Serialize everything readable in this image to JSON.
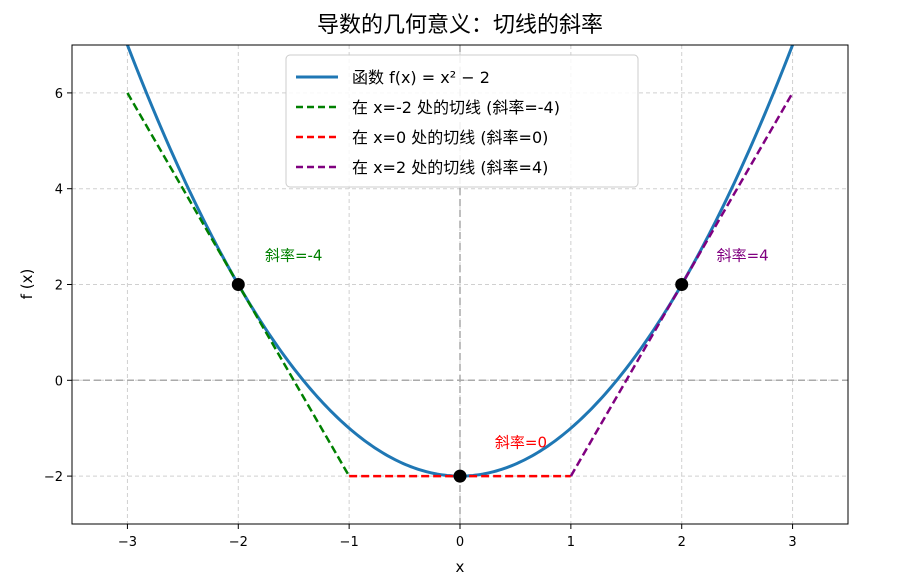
{
  "chart_data": {
    "type": "line",
    "title": "导数的几何意义：切线的斜率",
    "xlabel": "x",
    "ylabel": "f (x)",
    "xlim": [
      -3.5,
      3.5
    ],
    "ylim": [
      -3,
      7
    ],
    "xticks": [
      -3,
      -2,
      -1,
      0,
      1,
      2,
      3
    ],
    "yticks": [
      -2,
      0,
      2,
      4,
      6
    ],
    "grid": true,
    "legend_position": "top-center",
    "series": [
      {
        "name": "函数 f(x) = x² − 2",
        "kind": "curve",
        "function": "x^2 - 2",
        "x_range": [
          -3.5,
          3.5
        ],
        "color": "#1f77b4",
        "style": "solid"
      },
      {
        "name": "在 x=-2 处的切线 (斜率=-4)",
        "kind": "segment",
        "x": [
          -3,
          -1
        ],
        "y": [
          6,
          -2
        ],
        "color": "#008000",
        "style": "dashed"
      },
      {
        "name": "在 x=0 处的切线 (斜率=0)",
        "kind": "segment",
        "x": [
          -1,
          1
        ],
        "y": [
          -2,
          -2
        ],
        "color": "#ff0000",
        "style": "dashed"
      },
      {
        "name": "在 x=2 处的切线 (斜率=4)",
        "kind": "segment",
        "x": [
          1,
          3
        ],
        "y": [
          -2,
          6
        ],
        "color": "#800080",
        "style": "dashed"
      }
    ],
    "points": [
      {
        "x": -2,
        "y": 2
      },
      {
        "x": 0,
        "y": -2
      },
      {
        "x": 2,
        "y": 2
      }
    ],
    "annotations": [
      {
        "text": "斜率=-4",
        "x": -1.5,
        "y": 2.5,
        "color": "#008000"
      },
      {
        "text": "斜率=0",
        "x": 0.55,
        "y": -1.4,
        "color": "#ff0000"
      },
      {
        "text": "斜率=4",
        "x": 2.55,
        "y": 2.5,
        "color": "#800080"
      }
    ],
    "reference_lines": {
      "x": 0,
      "y": 0,
      "color": "#aaaaaa"
    }
  }
}
